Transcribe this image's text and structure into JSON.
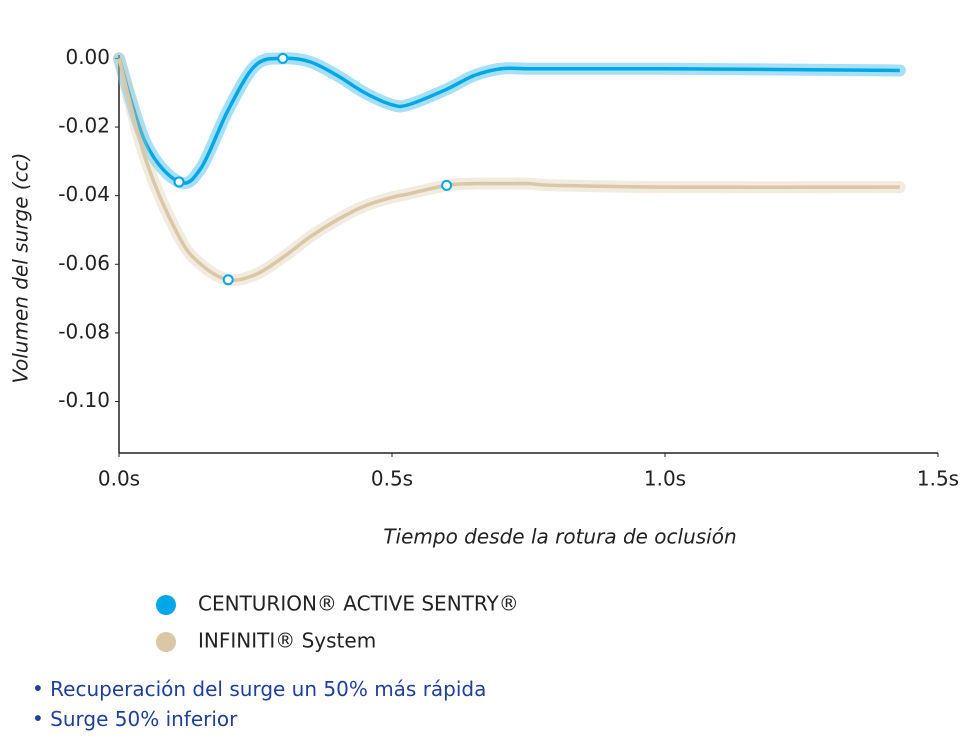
{
  "chart_data": {
    "type": "line",
    "x": [
      0,
      0.05,
      0.11,
      0.15,
      0.2,
      0.25,
      0.3,
      0.35,
      0.4,
      0.45,
      0.5,
      0.53,
      0.6,
      0.65,
      0.7,
      0.75,
      0.8,
      1.0,
      1.43
    ],
    "series": [
      {
        "name": "CENTURION® ACTIVE SENTRY®",
        "color": "#00a7e6",
        "values": [
          0,
          -0.025,
          -0.036,
          -0.032,
          -0.015,
          -0.002,
          0.0,
          -0.001,
          -0.005,
          -0.01,
          -0.0135,
          -0.0135,
          -0.009,
          -0.005,
          -0.003,
          -0.003,
          -0.003,
          -0.003,
          -0.0035
        ]
      },
      {
        "name": "INFINITI® System",
        "color": "#d9c7a5",
        "values": [
          0,
          -0.03,
          -0.052,
          -0.06,
          -0.0645,
          -0.063,
          -0.058,
          -0.052,
          -0.047,
          -0.043,
          -0.0405,
          -0.0395,
          -0.037,
          -0.0365,
          -0.0365,
          -0.0365,
          -0.037,
          -0.0375,
          -0.0375
        ]
      }
    ],
    "xlim": [
      0,
      1.5
    ],
    "xticks": [
      {
        "value": 0,
        "label": "0.0s"
      },
      {
        "value": 0.5,
        "label": "0.5s"
      },
      {
        "value": 1.0,
        "label": "1.0s"
      },
      {
        "value": 1.5,
        "label": "1.5s"
      }
    ],
    "ylim": [
      -0.115,
      0.001
    ],
    "yticks": [
      {
        "value": 0,
        "label": "0.00"
      },
      {
        "value": -0.02,
        "label": "-0.02"
      },
      {
        "value": -0.04,
        "label": "-0.04"
      },
      {
        "value": -0.06,
        "label": "-0.06"
      },
      {
        "value": -0.08,
        "label": "-0.08"
      },
      {
        "value": -0.1,
        "label": "-0.10"
      }
    ],
    "xlabel": "Tiempo desde la rotura de oclusión",
    "ylabel": "Volumen del surge (cc)"
  },
  "notes": [
    "Recuperación del surge un 50% más rápida",
    "Surge 50% inferior"
  ]
}
